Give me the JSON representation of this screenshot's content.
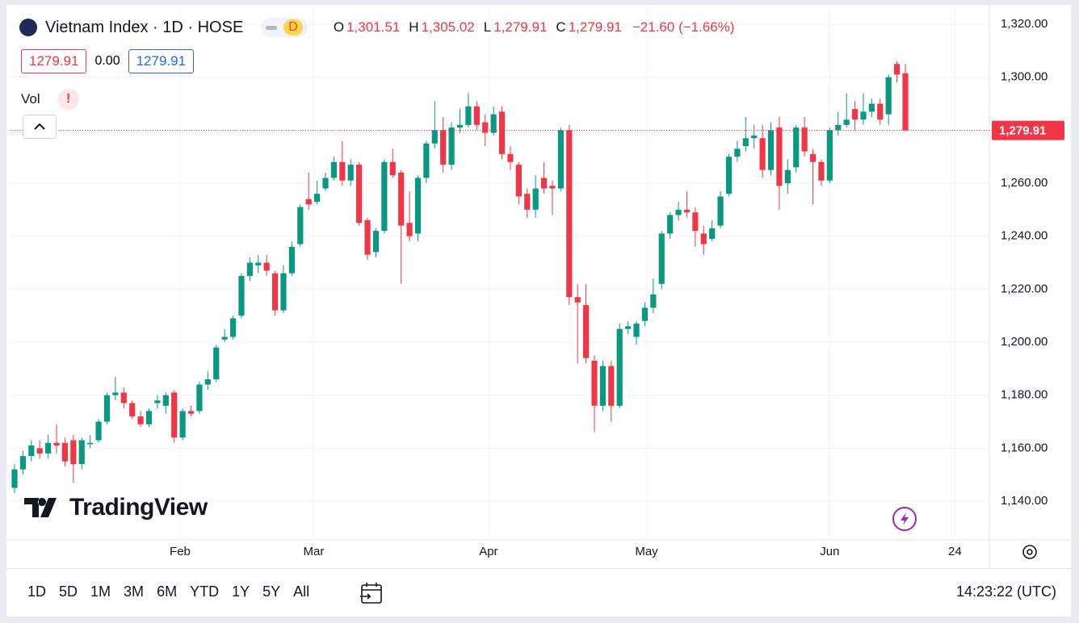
{
  "header": {
    "symbol": "Vietnam Index · 1D · HOSE",
    "interval_badge": "D",
    "legend": {
      "open_label": "O",
      "open": "1,301.51",
      "high_label": "H",
      "high": "1,305.02",
      "low_label": "L",
      "low": "1,279.91",
      "close_label": "C",
      "close": "1,279.91",
      "change": "−21.60 (−1.66%)"
    },
    "sell": "1279.91",
    "spread": "0.00",
    "buy": "1279.91",
    "volume_label": "Vol",
    "watermark": "TradingView"
  },
  "toolbar": {
    "ranges": [
      "1D",
      "5D",
      "1M",
      "3M",
      "6M",
      "YTD",
      "1Y",
      "5Y",
      "All"
    ],
    "time": "14:23:22 (UTC)"
  },
  "chart_data": {
    "type": "candlestick",
    "up_color": "#089981",
    "down_color": "#f23645",
    "grid": true,
    "ylim": [
      1126.6,
      1326.1
    ],
    "yticks": [
      {
        "value": 1140,
        "label": "1,140.00"
      },
      {
        "value": 1160,
        "label": "1,160.00"
      },
      {
        "value": 1180,
        "label": "1,180.00"
      },
      {
        "value": 1200,
        "label": "1,200.00"
      },
      {
        "value": 1220,
        "label": "1,220.00"
      },
      {
        "value": 1240,
        "label": "1,240.00"
      },
      {
        "value": 1260,
        "label": "1,260.00"
      },
      {
        "value": 1280,
        "label": "1,280.00"
      },
      {
        "value": 1300,
        "label": "1,300.00"
      },
      {
        "value": 1320,
        "label": "1,320.00"
      }
    ],
    "xticks": [
      {
        "value": 19.7,
        "label": "Feb"
      },
      {
        "value": 35.6,
        "label": "Mar"
      },
      {
        "value": 56.4,
        "label": "Apr"
      },
      {
        "value": 75.2,
        "label": "May"
      },
      {
        "value": 97,
        "label": "Jun"
      },
      {
        "value": 111.9,
        "label": "24"
      }
    ],
    "last_price": {
      "value": 1279.91,
      "label": "1,279.91"
    },
    "open": [
      1145,
      1152,
      1157,
      1160,
      1158,
      1162,
      1162,
      1163,
      1154,
      1161.5,
      1163,
      1170,
      1180,
      1181,
      1177,
      1172,
      1169,
      1177,
      1176,
      1181,
      1164,
      1174,
      1174,
      1184,
      1186,
      1201,
      1202,
      1210,
      1225,
      1229,
      1230,
      1226,
      1212,
      1226,
      1237,
      1254,
      1253,
      1258,
      1262,
      1268,
      1261,
      1267,
      1246,
      1234,
      1242,
      1268,
      1264,
      1245,
      1241,
      1262,
      1275,
      1280,
      1267,
      1281,
      1282,
      1289,
      1283,
      1279,
      1287,
      1271,
      1267,
      1256,
      1250,
      1262,
      1259,
      1258,
      1280,
      1217,
      1214,
      1193,
      1176,
      1191,
      1176,
      1205,
      1202,
      1208,
      1213,
      1222,
      1241,
      1248,
      1250,
      1249,
      1241,
      1239,
      1244,
      1256,
      1270,
      1274,
      1277,
      1277,
      1265,
      1281,
      1260,
      1266,
      1281,
      1271,
      1268,
      1261,
      1280,
      1282,
      1288,
      1284,
      1287,
      1290,
      1286,
      1305,
      1301.51
    ],
    "high": [
      1154,
      1159,
      1163,
      1163,
      1165,
      1169,
      1164,
      1165,
      1164,
      1165,
      1171,
      1181,
      1187,
      1183,
      1178,
      1174,
      1175,
      1180,
      1181,
      1182,
      1175,
      1176,
      1185,
      1189,
      1199,
      1205,
      1210,
      1226,
      1232,
      1233,
      1233,
      1227,
      1229,
      1238,
      1252,
      1264,
      1261,
      1264,
      1270,
      1276,
      1269,
      1268,
      1247,
      1243,
      1269,
      1273,
      1265,
      1257,
      1263,
      1276,
      1291,
      1285,
      1283,
      1288,
      1294,
      1291,
      1286,
      1289,
      1289,
      1274,
      1268,
      1258,
      1263,
      1268,
      1261,
      1281,
      1282,
      1222,
      1222,
      1195,
      1193,
      1193,
      1207,
      1208,
      1208,
      1215,
      1224,
      1242,
      1249,
      1253,
      1257,
      1251,
      1244,
      1246,
      1257,
      1271,
      1276,
      1285,
      1282,
      1282,
      1283,
      1285,
      1269,
      1282,
      1285,
      1273,
      1269,
      1281,
      1287,
      1294,
      1291,
      1294,
      1292,
      1292,
      1301,
      1306,
      1305.02
    ],
    "low": [
      1143,
      1150,
      1155,
      1156,
      1156,
      1158,
      1153,
      1147,
      1152,
      1160,
      1162,
      1169,
      1178,
      1175,
      1171,
      1168,
      1168,
      1175,
      1173,
      1162,
      1163,
      1172,
      1173,
      1182,
      1185,
      1200,
      1201,
      1209,
      1223,
      1226,
      1225,
      1210,
      1211,
      1225,
      1236,
      1250,
      1252,
      1257,
      1261,
      1259,
      1259,
      1244,
      1231,
      1232,
      1241,
      1262,
      1222,
      1238,
      1238,
      1260,
      1273,
      1264,
      1265,
      1279,
      1281,
      1280,
      1274,
      1278,
      1269,
      1265,
      1252,
      1247,
      1247,
      1256,
      1248,
      1257,
      1214,
      1192,
      1192,
      1166,
      1174,
      1170,
      1175,
      1203,
      1199,
      1206,
      1211,
      1220,
      1239,
      1246,
      1247,
      1236,
      1233,
      1238,
      1243,
      1255,
      1268,
      1272,
      1273,
      1262,
      1263,
      1250,
      1256,
      1264,
      1270,
      1252,
      1259,
      1260,
      1278,
      1281,
      1280,
      1282,
      1285,
      1282,
      1282,
      1298,
      1279.91
    ],
    "close": [
      1152,
      1157,
      1161,
      1158,
      1162,
      1161,
      1155,
      1154,
      1163,
      1162,
      1170,
      1180,
      1181,
      1177,
      1172,
      1169,
      1174,
      1178,
      1180,
      1164,
      1174,
      1173,
      1184,
      1186,
      1198,
      1202,
      1209,
      1225,
      1230,
      1230,
      1227,
      1212,
      1226,
      1236,
      1251,
      1252,
      1256,
      1262,
      1268,
      1261,
      1267,
      1245,
      1233,
      1242,
      1268,
      1263,
      1244,
      1240,
      1262,
      1275,
      1280,
      1267,
      1281,
      1282,
      1289,
      1282,
      1279,
      1286,
      1271,
      1268,
      1255,
      1250,
      1258,
      1258,
      1258,
      1280,
      1217,
      1215,
      1194,
      1176,
      1191,
      1176,
      1205,
      1206,
      1207,
      1213,
      1218,
      1241,
      1248,
      1250,
      1249,
      1242,
      1237,
      1243,
      1255,
      1270,
      1273,
      1277,
      1278,
      1265,
      1280,
      1259,
      1265,
      1281,
      1272,
      1268,
      1261,
      1280,
      1282,
      1284,
      1284,
      1287,
      1290,
      1284,
      1300,
      1301,
      1279.91
    ]
  }
}
